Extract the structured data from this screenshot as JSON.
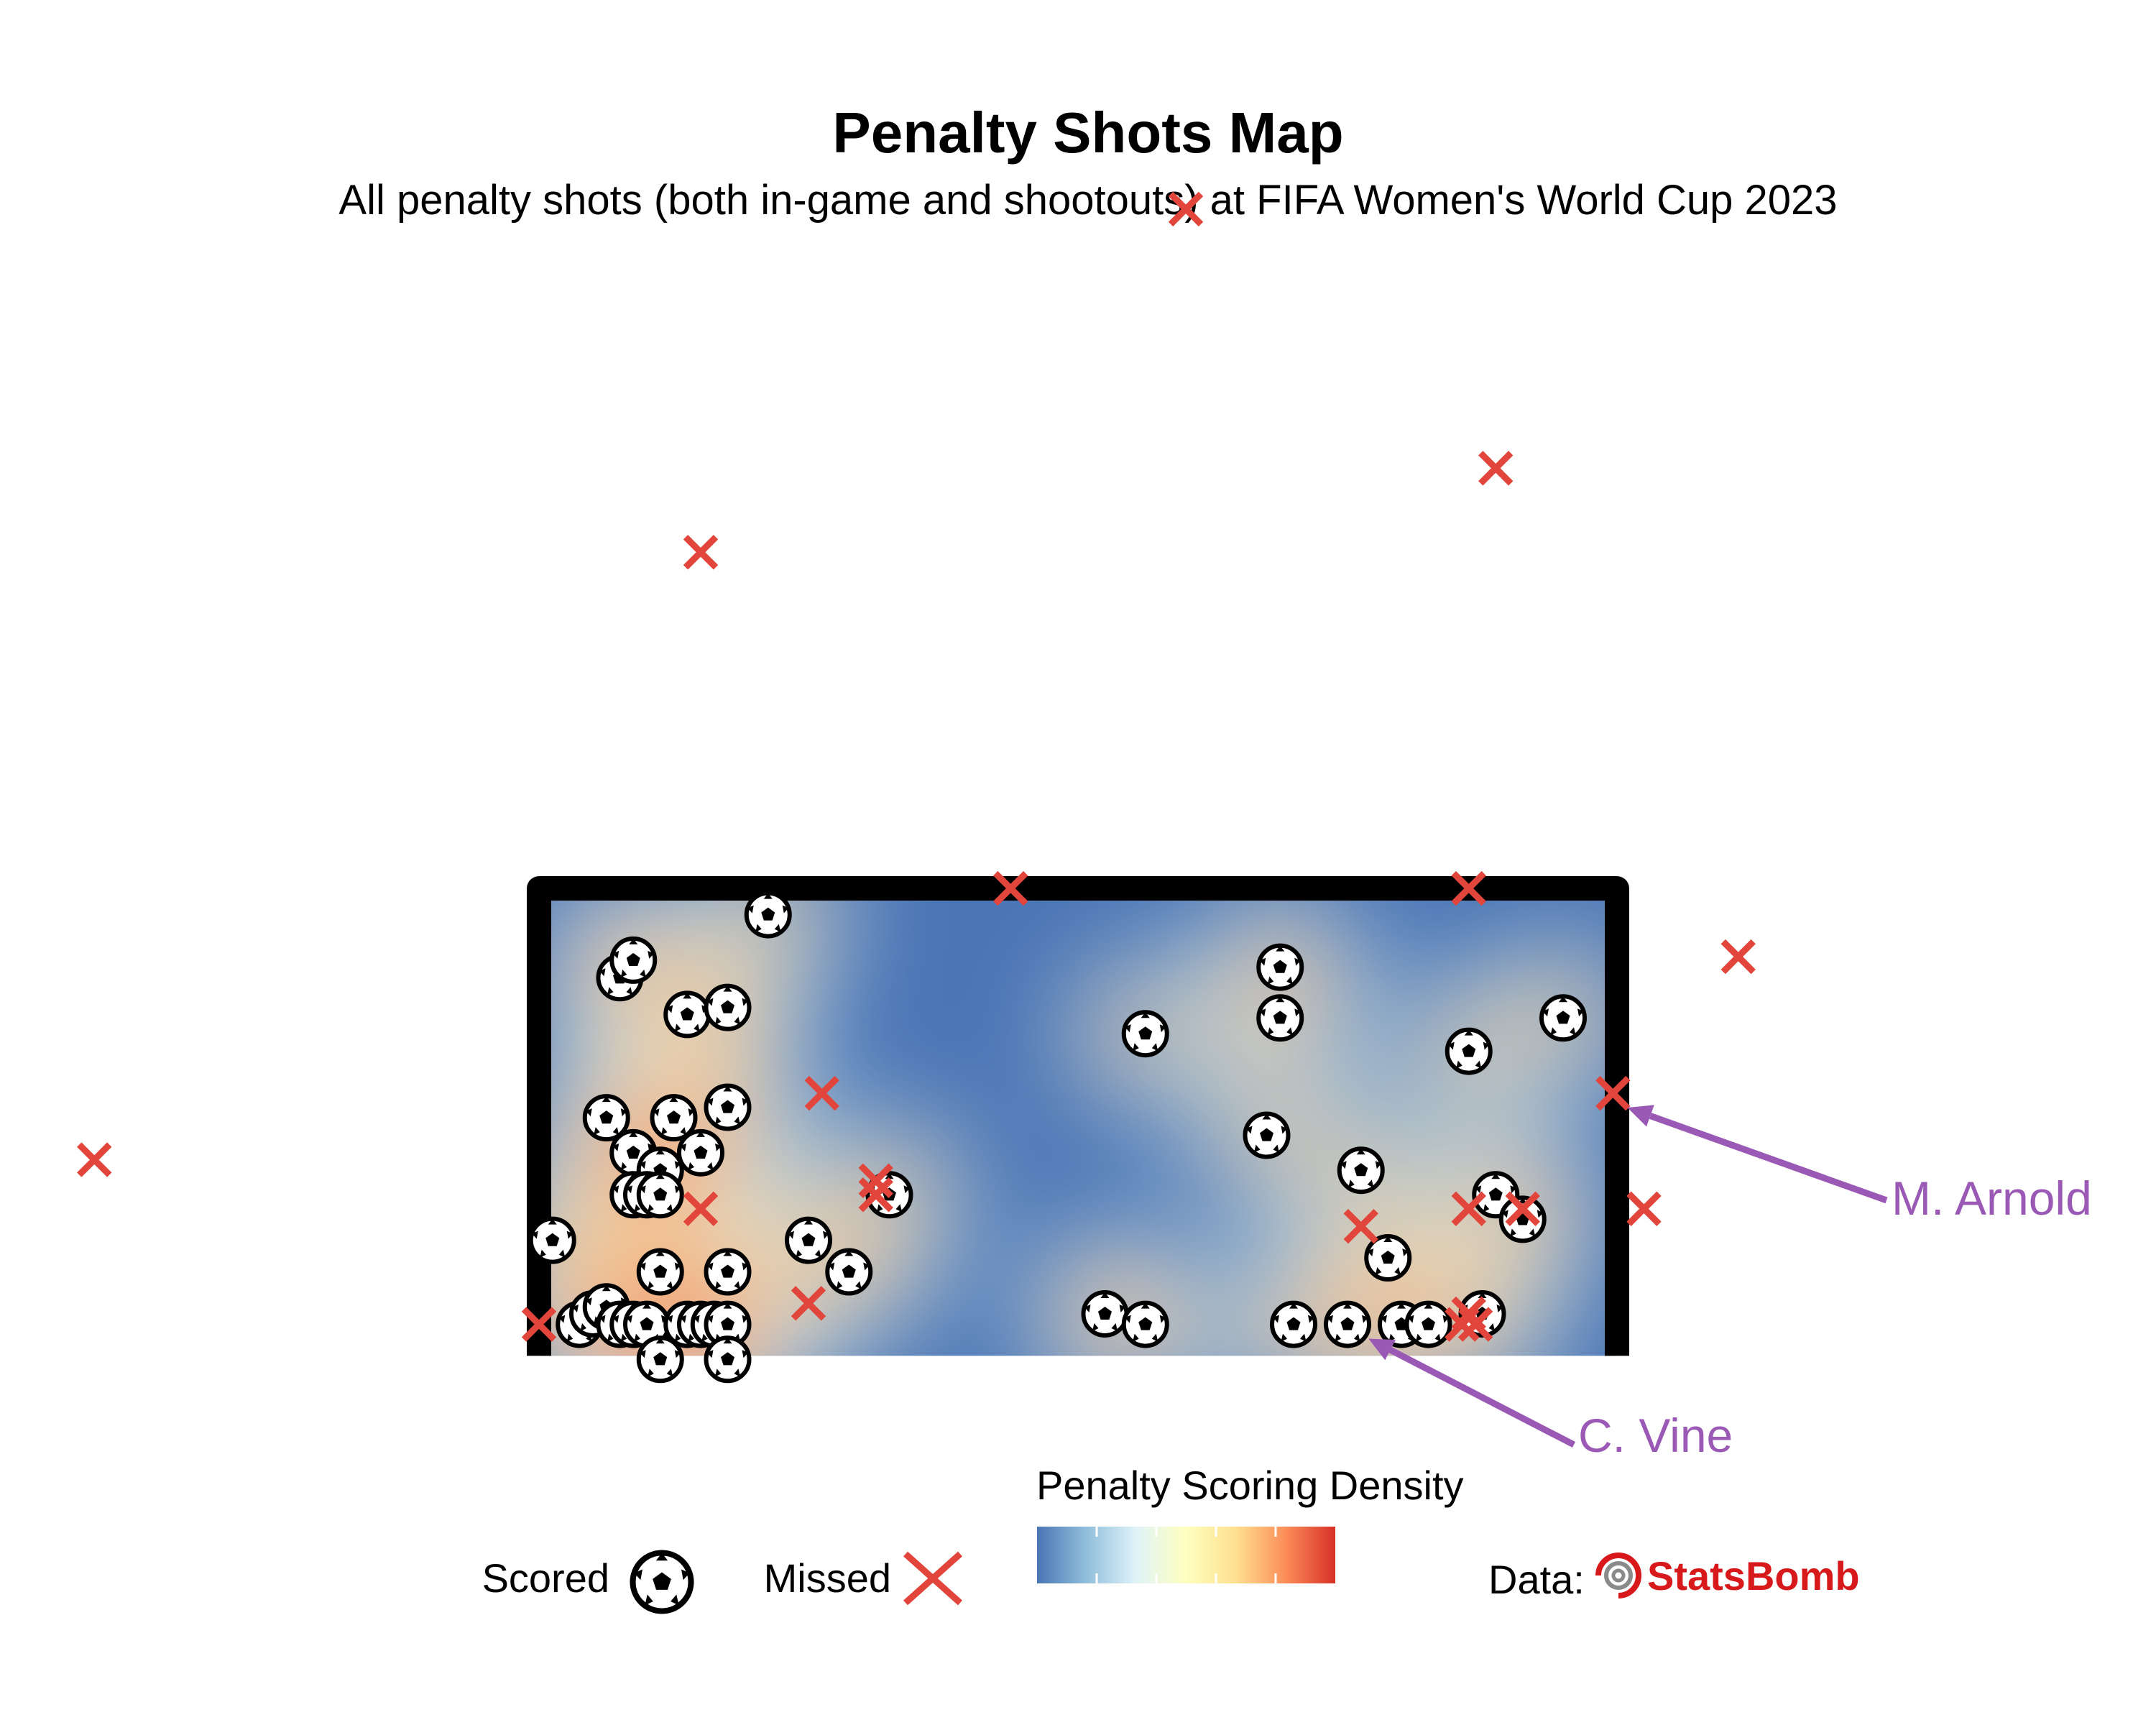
{
  "title": "Penalty Shots Map",
  "subtitle": "All penalty shots (both in-game and shootouts) at FIFA Women's World Cup 2023",
  "legend": {
    "scored_label": "Scored",
    "missed_label": "Missed",
    "density_title": "Penalty Scoring Density",
    "data_prefix": "Data:",
    "brand_name": "StatsBomb"
  },
  "colors": {
    "missed": "#e2453b",
    "annotation": "#9b59b6",
    "goal_frame": "#000000",
    "brand": "#d7191c",
    "density_ramp": [
      "#4a74b4",
      "#91bfdb",
      "#e0f3f8",
      "#ffffbf",
      "#fee090",
      "#fc8d59",
      "#d73027"
    ]
  },
  "icons": {
    "scored": "soccer-ball-icon",
    "missed": "cross-icon",
    "brand": "target-icon"
  },
  "chart_data": {
    "type": "scatter",
    "x_domain": [
      32.0,
      48.0
    ],
    "y_domain": [
      -1.0,
      6.8
    ],
    "goal": {
      "post_left_x": 36.0,
      "post_right_x": 44.0,
      "crossbar_height": 2.67
    },
    "annotations": [
      {
        "label": "M. Arnold",
        "x": 43.97,
        "y": 1.5
      },
      {
        "label": "C. Vine",
        "x": 42.05,
        "y": 0.18
      }
    ],
    "missed": [
      {
        "x": 32.7,
        "y": 1.12
      },
      {
        "x": 36.0,
        "y": 0.18
      },
      {
        "x": 37.2,
        "y": 4.59
      },
      {
        "x": 37.2,
        "y": 0.84
      },
      {
        "x": 38.1,
        "y": 1.5
      },
      {
        "x": 38.0,
        "y": 0.3
      },
      {
        "x": 38.5,
        "y": 1.0
      },
      {
        "x": 38.5,
        "y": 0.92
      },
      {
        "x": 39.5,
        "y": 2.67
      },
      {
        "x": 40.8,
        "y": 6.55
      },
      {
        "x": 42.1,
        "y": 0.74
      },
      {
        "x": 43.1,
        "y": 5.07
      },
      {
        "x": 42.9,
        "y": 2.67
      },
      {
        "x": 42.9,
        "y": 0.84
      },
      {
        "x": 42.85,
        "y": 0.18
      },
      {
        "x": 42.95,
        "y": 0.18
      },
      {
        "x": 42.9,
        "y": 0.24
      },
      {
        "x": 43.3,
        "y": 0.84
      },
      {
        "x": 43.97,
        "y": 1.5
      },
      {
        "x": 44.2,
        "y": 0.84
      },
      {
        "x": 44.9,
        "y": 2.28
      }
    ],
    "scored": [
      {
        "x": 37.7,
        "y": 2.52
      },
      {
        "x": 36.6,
        "y": 2.16
      },
      {
        "x": 36.7,
        "y": 2.26
      },
      {
        "x": 37.1,
        "y": 1.95
      },
      {
        "x": 37.4,
        "y": 1.99
      },
      {
        "x": 36.5,
        "y": 1.36
      },
      {
        "x": 37.0,
        "y": 1.36
      },
      {
        "x": 37.4,
        "y": 1.42
      },
      {
        "x": 36.7,
        "y": 1.16
      },
      {
        "x": 37.2,
        "y": 1.16
      },
      {
        "x": 36.9,
        "y": 1.06
      },
      {
        "x": 36.7,
        "y": 0.92
      },
      {
        "x": 36.8,
        "y": 0.92
      },
      {
        "x": 36.9,
        "y": 0.92
      },
      {
        "x": 36.1,
        "y": 0.66
      },
      {
        "x": 36.9,
        "y": 0.48
      },
      {
        "x": 37.4,
        "y": 0.48
      },
      {
        "x": 36.3,
        "y": 0.18
      },
      {
        "x": 36.4,
        "y": 0.24
      },
      {
        "x": 36.5,
        "y": 0.28
      },
      {
        "x": 36.6,
        "y": 0.18
      },
      {
        "x": 36.7,
        "y": 0.18
      },
      {
        "x": 36.8,
        "y": 0.18
      },
      {
        "x": 37.1,
        "y": 0.18
      },
      {
        "x": 37.2,
        "y": 0.18
      },
      {
        "x": 37.3,
        "y": 0.18
      },
      {
        "x": 37.4,
        "y": 0.18
      },
      {
        "x": 36.9,
        "y": -0.02
      },
      {
        "x": 37.4,
        "y": -0.02
      },
      {
        "x": 38.0,
        "y": 0.66
      },
      {
        "x": 38.3,
        "y": 0.48
      },
      {
        "x": 38.6,
        "y": 0.92
      },
      {
        "x": 40.2,
        "y": 0.24
      },
      {
        "x": 40.5,
        "y": 0.18
      },
      {
        "x": 40.5,
        "y": 1.84
      },
      {
        "x": 41.5,
        "y": 2.22
      },
      {
        "x": 41.5,
        "y": 1.93
      },
      {
        "x": 41.4,
        "y": 1.26
      },
      {
        "x": 41.6,
        "y": 0.18
      },
      {
        "x": 42.0,
        "y": 0.18
      },
      {
        "x": 42.4,
        "y": 0.18
      },
      {
        "x": 42.6,
        "y": 0.18
      },
      {
        "x": 42.1,
        "y": 1.06
      },
      {
        "x": 42.3,
        "y": 0.56
      },
      {
        "x": 42.9,
        "y": 1.74
      },
      {
        "x": 43.1,
        "y": 0.92
      },
      {
        "x": 43.3,
        "y": 0.78
      },
      {
        "x": 43.0,
        "y": 0.24
      },
      {
        "x": 43.6,
        "y": 1.93
      }
    ]
  }
}
